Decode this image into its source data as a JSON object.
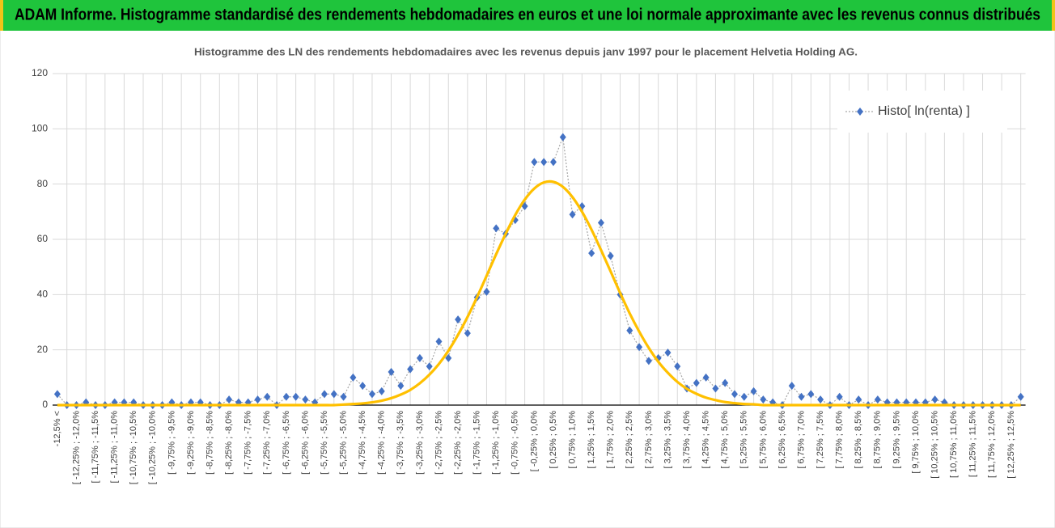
{
  "chart_data": {
    "type": "line",
    "title": "ADAM Informe. Histogramme standardisé des rendements hebdomadaires en euros et une loi normale approximante avec les revenus connus distribués",
    "subtitle": "Histogramme des LN des rendements hebdomadaires avec les revenus depuis janv 1997 pour le placement Helvetia Holding AG.",
    "categories": [
      "-12,5% <",
      null,
      "[ -12,25% ; -12,0%",
      null,
      "[ -11,75% ; -11,5%",
      null,
      "[ -11,25% ; -11,0%",
      null,
      "[ -10,75% ; -10,5%",
      null,
      "[ -10,25% ; -10,0%",
      null,
      "[ -9,75% ; -9,5%",
      null,
      "[ -9,25% ; -9,0%",
      null,
      "[ -8,75% ; -8,5%",
      null,
      "[ -8,25% ; -8,0%",
      null,
      "[ -7,75% ; -7,5%",
      null,
      "[ -7,25% ; -7,0%",
      null,
      "[ -6,75% ; -6,5%",
      null,
      "[ -6,25% ; -6,0%",
      null,
      "[ -5,75% ; -5,5%",
      null,
      "[ -5,25% ; -5,0%",
      null,
      "[ -4,75% ; -4,5%",
      null,
      "[ -4,25% ; -4,0%",
      null,
      "[ -3,75% ; -3,5%",
      null,
      "[ -3,25% ; -3,0%",
      null,
      "[ -2,75% ; -2,5%",
      null,
      "[ -2,25% ; -2,0%",
      null,
      "[ -1,75% ; -1,5%",
      null,
      "[ -1,25% ; -1,0%",
      null,
      "[ -0,75% ; -0,5%",
      null,
      "[ -0,25% ; 0,0%",
      null,
      "[ 0,25% ; 0,5%",
      null,
      "[ 0,75% ; 1,0%",
      null,
      "[ 1,25% ; 1,5%",
      null,
      "[ 1,75% ; 2,0%",
      null,
      "[ 2,25% ; 2,5%",
      null,
      "[ 2,75% ; 3,0%",
      null,
      "[ 3,25% ; 3,5%",
      null,
      "[ 3,75% ; 4,0%",
      null,
      "[ 4,25% ; 4,5%",
      null,
      "[ 4,75% ; 5,0%",
      null,
      "[ 5,25% ; 5,5%",
      null,
      "[ 5,75% ; 6,0%",
      null,
      "[ 6,25% ; 6,5%",
      null,
      "[ 6,75% ; 7,0%",
      null,
      "[ 7,25% ; 7,5%",
      null,
      "[ 7,75% ; 8,0%",
      null,
      "[ 8,25% ; 8,5%",
      null,
      "[ 8,75% ; 9,0%",
      null,
      "[ 9,25% ; 9,5%",
      null,
      "[ 9,75% ; 10,0%",
      null,
      "[ 10,25% ; 10,5%",
      null,
      "[ 10,75% ; 11,0%",
      null,
      "[ 11,25% ; 11,5%",
      null,
      "[ 11,75% ; 12,0%",
      null,
      "[ 12,25% ; 12,5%",
      null
    ],
    "series": [
      {
        "name": "Histo[ ln(renta) ]",
        "color": "#4472c4",
        "line_color": "#a6a6a6",
        "marker": "diamond",
        "values": [
          4,
          0,
          0,
          1,
          0,
          0,
          1,
          1,
          1,
          0,
          0,
          0,
          1,
          0,
          1,
          1,
          0,
          0,
          2,
          1,
          1,
          2,
          3,
          0,
          3,
          3,
          2,
          1,
          4,
          4,
          3,
          10,
          7,
          4,
          5,
          12,
          7,
          13,
          17,
          14,
          23,
          17,
          31,
          26,
          39,
          41,
          64,
          62,
          67,
          72,
          88,
          88,
          88,
          97,
          69,
          72,
          55,
          66,
          54,
          40,
          27,
          21,
          16,
          17,
          19,
          14,
          6,
          8,
          10,
          6,
          8,
          4,
          3,
          5,
          2,
          1,
          0,
          7,
          3,
          4,
          2,
          0,
          3,
          0,
          2,
          0,
          2,
          1,
          1,
          1,
          1,
          1,
          2,
          1,
          0,
          0,
          0,
          0,
          0,
          0,
          0,
          3
        ]
      },
      {
        "color": "#ffc000",
        "smooth": true,
        "values": [
          0,
          0,
          0,
          0,
          0,
          0,
          0,
          0,
          0,
          0,
          0,
          0,
          0,
          0,
          0,
          0,
          0,
          0,
          0,
          0,
          0,
          0,
          0,
          0,
          0,
          0,
          0,
          0,
          0,
          0,
          0.2,
          0.4,
          0.6,
          1.0,
          1.6,
          2.5,
          3.8,
          5.5,
          7.9,
          11.0,
          14.9,
          19.7,
          25.4,
          31.9,
          39.1,
          46.8,
          54.6,
          62.0,
          68.8,
          74.4,
          78.4,
          80.6,
          80.8,
          79.0,
          75.3,
          70.0,
          63.5,
          56.1,
          48.4,
          40.6,
          33.2,
          26.6,
          20.7,
          15.7,
          11.7,
          8.4,
          5.9,
          4.1,
          2.7,
          1.8,
          1.1,
          0.7,
          0.4,
          0.3,
          0,
          0,
          0,
          0,
          0,
          0,
          0,
          0,
          0,
          0,
          0,
          0,
          0,
          0,
          0,
          0,
          0,
          0,
          0,
          0,
          0,
          0,
          0,
          0,
          0,
          0,
          0,
          0
        ]
      }
    ],
    "ylim": [
      0,
      120
    ],
    "yticks": [
      0,
      20,
      40,
      60,
      80,
      100,
      120
    ],
    "grid": true,
    "legend_position": "upper right"
  }
}
